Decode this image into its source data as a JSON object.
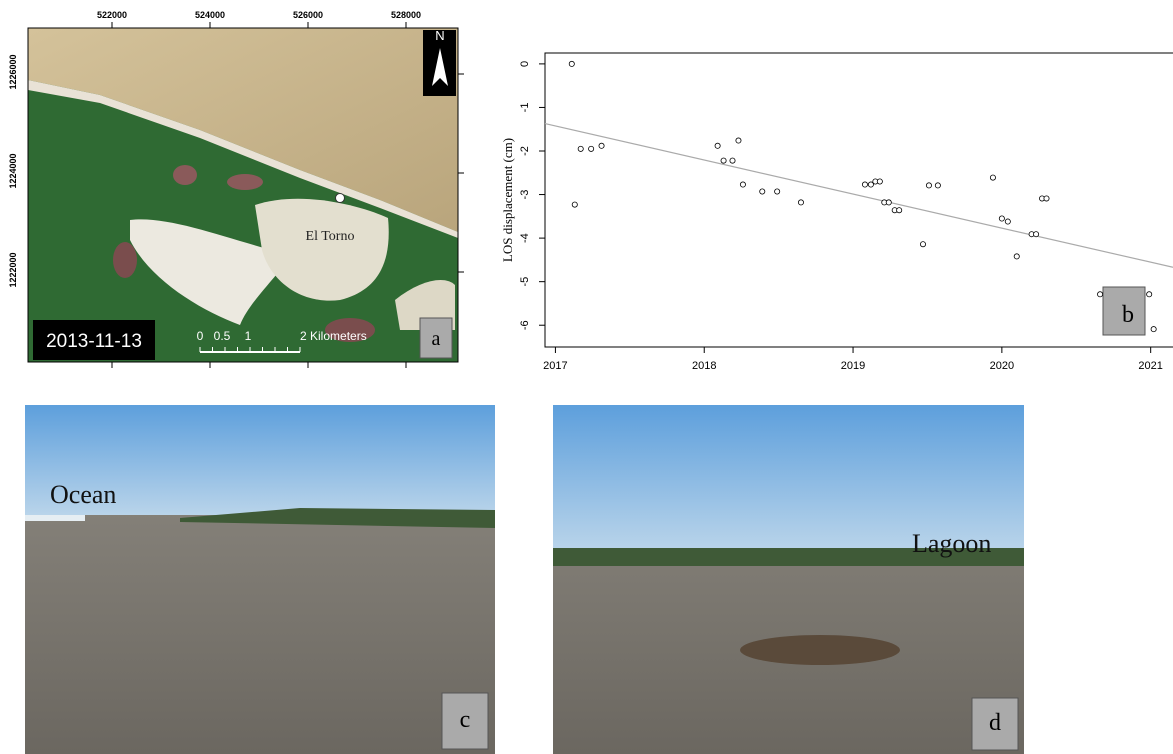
{
  "map_a": {
    "x_ticks": [
      "522000",
      "524000",
      "526000",
      "528000"
    ],
    "y_ticks": [
      "1226000",
      "1224000",
      "1222000"
    ],
    "north": "N",
    "place": "El Torno",
    "date": "2013-11-13",
    "scale_labels": [
      "0",
      "0.5",
      "1",
      "2 Kilometers"
    ],
    "panel": "a"
  },
  "chart_data": {
    "type": "scatter",
    "y_label": "LOS displacement (cm)",
    "panel": "b",
    "x": [
      2017.11,
      2017.13,
      2017.17,
      2017.24,
      2017.31,
      2018.09,
      2018.13,
      2018.19,
      2018.23,
      2018.26,
      2018.39,
      2018.49,
      2018.65,
      2019.08,
      2019.12,
      2019.15,
      2019.18,
      2019.21,
      2019.24,
      2019.28,
      2019.31,
      2019.47,
      2019.51,
      2019.57,
      2019.94,
      2020.0,
      2020.04,
      2020.1,
      2020.2,
      2020.23,
      2020.27,
      2020.3,
      2020.66,
      2020.99,
      2021.02
    ],
    "values": [
      0,
      -3.23,
      -1.95,
      -1.95,
      -1.88,
      -1.88,
      -2.22,
      -2.22,
      -1.76,
      -2.77,
      -2.93,
      -2.93,
      -3.18,
      -2.77,
      -2.77,
      -2.7,
      -2.7,
      -3.18,
      -3.18,
      -3.36,
      -3.36,
      -4.14,
      -2.79,
      -2.79,
      -2.61,
      -3.55,
      -3.62,
      -4.42,
      -3.91,
      -3.91,
      -3.09,
      -3.09,
      -5.29,
      -5.29,
      -6.09
    ],
    "trend": {
      "x": [
        2016.93,
        2021.15
      ],
      "values": [
        -1.37,
        -4.67
      ]
    },
    "xlim": [
      2016.93,
      2021.15
    ],
    "ylim": [
      -6.5,
      0.25
    ],
    "xticks": [
      2017,
      2018,
      2019,
      2020,
      2021
    ],
    "yticks": [
      0,
      -1,
      -2,
      -3,
      -4,
      -5,
      -6
    ]
  },
  "photo_c": {
    "label": "Ocean",
    "panel": "c"
  },
  "photo_d": {
    "label": "Lagoon",
    "panel": "d"
  }
}
